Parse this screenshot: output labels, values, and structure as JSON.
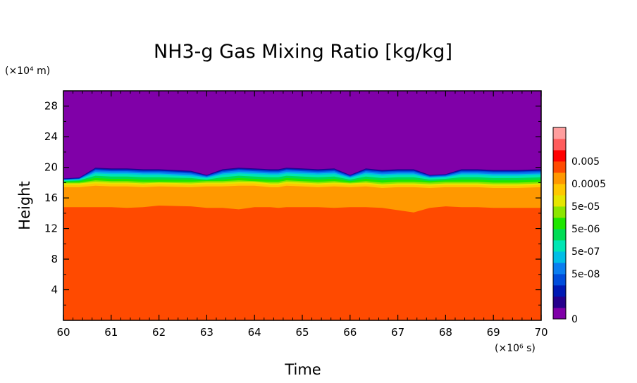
{
  "chart_data": {
    "type": "heatmap",
    "title": "NH3-g Gas Mixing Ratio [kg/kg]",
    "xlabel": "Time",
    "ylabel": "Height",
    "x_unit": "(×10⁶ s)",
    "y_unit": "(×10⁴ m)",
    "xlim": [
      60,
      70
    ],
    "ylim": [
      0,
      30
    ],
    "x_ticks": [
      "60",
      "61",
      "62",
      "63",
      "64",
      "65",
      "66",
      "67",
      "68",
      "69",
      "70"
    ],
    "y_ticks": [
      "4",
      "8",
      "12",
      "16",
      "20",
      "24",
      "28"
    ],
    "colorbar": {
      "tick_labels": [
        "0.005",
        "0.0005",
        "5e-05",
        "5e-06",
        "5e-07",
        "5e-08",
        "0"
      ],
      "colors": [
        "#8000a8",
        "#26008c",
        "#0019b4",
        "#004ddc",
        "#0a7ef0",
        "#00bee6",
        "#00e6b4",
        "#00dc55",
        "#1ee600",
        "#8ce600",
        "#e6e600",
        "#ffc800",
        "#ff9800",
        "#ff4a00",
        "#ff0000",
        "#ff5c5c",
        "#ff9e9e"
      ]
    },
    "layers": [
      {
        "name": "ff4a00",
        "color": "#ff4a00",
        "top": [
          14.8,
          14.8,
          14.8,
          14.8,
          14.7,
          14.8,
          15.0,
          14.9,
          14.7,
          14.7,
          14.5,
          14.8,
          14.8,
          14.7,
          14.8,
          14.8,
          14.8,
          14.7,
          14.8,
          14.8,
          14.7,
          14.4,
          14.1,
          14.7,
          14.9,
          14.8,
          14.8,
          14.8,
          14.7,
          14.7,
          14.7
        ]
      },
      {
        "name": "ff9800",
        "color": "#ff9800",
        "top": [
          17.4,
          17.4,
          17.6,
          17.5,
          17.5,
          17.4,
          17.5,
          17.4,
          17.5,
          17.5,
          17.6,
          17.6,
          17.4,
          17.4,
          17.6,
          17.5,
          17.4,
          17.5,
          17.4,
          17.5,
          17.3,
          17.4,
          17.4,
          17.3,
          17.4,
          17.4,
          17.4,
          17.4,
          17.3,
          17.3,
          17.4
        ]
      },
      {
        "name": "ffc800",
        "color": "#ffc800",
        "top": [
          17.7,
          17.7,
          17.9,
          17.8,
          17.8,
          17.7,
          17.8,
          17.7,
          17.8,
          17.8,
          17.9,
          17.9,
          17.7,
          17.7,
          17.9,
          17.8,
          17.7,
          17.8,
          17.7,
          17.8,
          17.6,
          17.7,
          17.7,
          17.6,
          17.7,
          17.7,
          17.7,
          17.7,
          17.6,
          17.6,
          17.7
        ]
      },
      {
        "name": "e6e600",
        "color": "#e6e600",
        "top": [
          17.9,
          17.9,
          18.1,
          18.0,
          18.0,
          17.9,
          18.0,
          17.9,
          18.0,
          18.0,
          18.1,
          18.1,
          17.9,
          17.9,
          18.1,
          18.0,
          17.9,
          18.0,
          17.9,
          18.0,
          17.8,
          17.9,
          17.9,
          17.8,
          17.9,
          17.9,
          17.9,
          17.9,
          17.8,
          17.8,
          17.9
        ]
      },
      {
        "name": "8ce600",
        "color": "#8ce600",
        "top": [
          18.0,
          18.0,
          18.3,
          18.2,
          18.2,
          18.1,
          18.1,
          18.1,
          18.2,
          18.2,
          18.3,
          18.2,
          18.1,
          18.1,
          18.3,
          18.2,
          18.1,
          18.2,
          18.0,
          18.2,
          18.0,
          18.1,
          18.1,
          18.0,
          18.1,
          18.1,
          18.1,
          18.1,
          18.0,
          18.0,
          18.1
        ]
      },
      {
        "name": "1ee600",
        "color": "#1ee600",
        "top": [
          18.1,
          18.2,
          18.6,
          18.5,
          18.5,
          18.4,
          18.4,
          18.4,
          18.3,
          18.4,
          18.6,
          18.5,
          18.4,
          18.4,
          18.6,
          18.5,
          18.4,
          18.5,
          18.2,
          18.5,
          18.3,
          18.4,
          18.4,
          18.2,
          18.3,
          18.4,
          18.4,
          18.4,
          18.3,
          18.3,
          18.4
        ]
      },
      {
        "name": "00dc55",
        "color": "#00dc55",
        "top": [
          18.2,
          18.3,
          18.9,
          18.8,
          18.8,
          18.7,
          18.7,
          18.6,
          18.4,
          18.7,
          18.9,
          18.8,
          18.7,
          18.7,
          18.9,
          18.8,
          18.7,
          18.8,
          18.4,
          18.8,
          18.6,
          18.7,
          18.7,
          18.4,
          18.5,
          18.7,
          18.7,
          18.7,
          18.6,
          18.6,
          18.7
        ]
      },
      {
        "name": "00e6b4",
        "color": "#00e6b4",
        "top": [
          18.3,
          18.4,
          19.2,
          19.1,
          19.1,
          19.0,
          19.0,
          18.8,
          18.6,
          19.0,
          19.2,
          19.1,
          19.0,
          19.0,
          19.2,
          19.1,
          19.0,
          19.1,
          18.6,
          19.1,
          18.9,
          19.0,
          19.0,
          18.6,
          18.7,
          19.0,
          19.0,
          19.0,
          18.9,
          18.9,
          19.0
        ]
      },
      {
        "name": "00bee6",
        "color": "#00bee6",
        "top": [
          18.35,
          18.45,
          19.4,
          19.3,
          19.3,
          19.2,
          19.2,
          19.0,
          18.7,
          19.2,
          19.4,
          19.3,
          19.2,
          19.2,
          19.4,
          19.3,
          19.2,
          19.3,
          18.7,
          19.3,
          19.1,
          19.2,
          19.2,
          18.7,
          18.8,
          19.2,
          19.2,
          19.2,
          19.1,
          19.1,
          19.2
        ]
      },
      {
        "name": "0a7ef0",
        "color": "#0a7ef0",
        "top": [
          18.4,
          18.5,
          19.6,
          19.5,
          19.5,
          19.4,
          19.4,
          19.2,
          18.8,
          19.4,
          19.6,
          19.5,
          19.4,
          19.4,
          19.6,
          19.5,
          19.4,
          19.5,
          18.8,
          19.5,
          19.3,
          19.4,
          19.4,
          18.8,
          18.9,
          19.4,
          19.4,
          19.4,
          19.3,
          19.3,
          19.4
        ]
      },
      {
        "name": "004ddc",
        "color": "#004ddc",
        "top": [
          18.45,
          18.55,
          19.75,
          19.65,
          19.65,
          19.55,
          19.55,
          19.35,
          18.9,
          19.55,
          19.75,
          19.65,
          19.55,
          19.55,
          19.75,
          19.65,
          19.55,
          19.65,
          18.9,
          19.65,
          19.45,
          19.55,
          19.55,
          18.9,
          19.0,
          19.55,
          19.55,
          19.55,
          19.45,
          19.45,
          19.55
        ]
      },
      {
        "name": "0019b4",
        "color": "#0019b4",
        "top": [
          18.5,
          18.6,
          19.85,
          19.75,
          19.75,
          19.65,
          19.65,
          19.45,
          18.95,
          19.65,
          19.85,
          19.75,
          19.65,
          19.65,
          19.85,
          19.75,
          19.65,
          19.75,
          18.95,
          19.75,
          19.55,
          19.65,
          19.65,
          18.95,
          19.05,
          19.65,
          19.65,
          19.65,
          19.55,
          19.55,
          19.65
        ]
      },
      {
        "name": "26008c",
        "color": "#26008c",
        "top": [
          18.55,
          18.65,
          19.95,
          19.85,
          19.85,
          19.75,
          19.75,
          19.55,
          19.0,
          19.75,
          19.95,
          19.85,
          19.75,
          19.75,
          19.95,
          19.85,
          19.75,
          19.85,
          19.0,
          19.85,
          19.65,
          19.75,
          19.75,
          19.0,
          19.1,
          19.75,
          19.75,
          19.75,
          19.65,
          19.65,
          19.75
        ]
      }
    ],
    "background_color": "#8000a8",
    "layer_x": [
      60.0,
      60.33,
      60.67,
      61.0,
      61.33,
      61.67,
      62.0,
      62.67,
      63.0,
      63.33,
      63.67,
      64.0,
      64.33,
      64.5,
      64.67,
      65.0,
      65.33,
      65.67,
      66.0,
      66.33,
      66.67,
      67.0,
      67.33,
      67.67,
      68.0,
      68.33,
      68.5,
      68.67,
      69.0,
      69.5,
      70.0
    ]
  }
}
